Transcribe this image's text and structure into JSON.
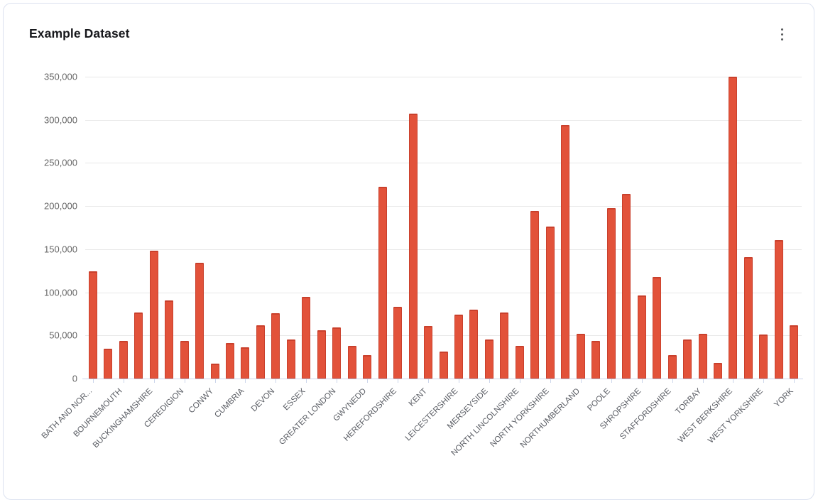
{
  "card": {
    "title": "Example Dataset",
    "menu_icon": "kebab-menu"
  },
  "chart_data": {
    "type": "bar",
    "title": "Example Dataset",
    "ylabel": "",
    "xlabel": "",
    "ylim": [
      0,
      350000
    ],
    "grid": true,
    "legend": "none",
    "y_ticks": [
      0,
      50000,
      100000,
      150000,
      200000,
      250000,
      300000,
      350000
    ],
    "y_tick_labels": [
      "0",
      "50,000",
      "100,000",
      "150,000",
      "200,000",
      "250,000",
      "300,000",
      "350,000"
    ],
    "x_tick_labels": [
      "BATH AND NOR...",
      "BOURNEMOUTH",
      "BUCKINGHAMSHIRE",
      "CEREDIGION",
      "CONWY",
      "CUMBRIA",
      "DEVON",
      "ESSEX",
      "GREATER LONDON",
      "GWYNEDD",
      "HEREFORDSHIRE",
      "KENT",
      "LEICESTERSHIRE",
      "MERSEYSIDE",
      "NORTH LINCOLNSHIRE",
      "NORTH YORKSHIRE",
      "NORTHUMBERLAND",
      "POOLE",
      "SHROPSHIRE",
      "STAFFORDSHIRE",
      "TORBAY",
      "WEST BERKSHIRE",
      "WEST YORKSHIRE",
      "YORK"
    ],
    "label_every_nth_bar": 2,
    "values": [
      124000,
      35000,
      44000,
      77000,
      148000,
      91000,
      44000,
      134000,
      17000,
      41000,
      36000,
      62000,
      76000,
      45000,
      95000,
      56000,
      59000,
      38000,
      27000,
      222000,
      83000,
      307000,
      61000,
      31000,
      74000,
      80000,
      45000,
      77000,
      38000,
      194000,
      176000,
      294000,
      52000,
      44000,
      198000,
      214000,
      96000,
      118000,
      27000,
      45000,
      52000,
      18000,
      350000,
      141000,
      51000,
      161000,
      62000
    ],
    "colors": {
      "bar_fill": "#e2523a",
      "bar_border": "#c9402c",
      "axis_line": "#ccd6eb",
      "gridline": "#e8e8e8",
      "y_label_color": "#666666",
      "x_label_color": "#595c63",
      "title_color": "#17181c"
    }
  }
}
